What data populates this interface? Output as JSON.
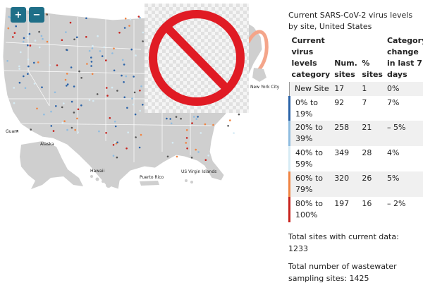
{
  "controls": {
    "zoom_in": "+",
    "zoom_out": "−"
  },
  "colors": {
    "new_site": "#ffffff",
    "0_19": "#2b63a8",
    "20_39": "#8fbce0",
    "40_59": "#d7ecf5",
    "60_79": "#f08442",
    "80_100": "#c8231e",
    "land": "#cfcfcf",
    "no_sign_red": "#e01b24"
  },
  "map_labels": {
    "guam": "Guam",
    "alaska": "Alaska",
    "hawaii": "Hawaii",
    "puerto_rico": "Puerto Rico",
    "virgin_islands": "US Virgin Islands",
    "new_york_city": "New York City"
  },
  "legend": {
    "title": "Current SARS-CoV-2 virus levels by site, United States",
    "headers": [
      "Current virus levels category",
      "Num. sites",
      "% sites",
      "Category change in last 7 days"
    ],
    "rows": [
      {
        "category": "New Site",
        "num": "17",
        "pct": "1",
        "change": "0%",
        "color": "#ffffff"
      },
      {
        "category": "0% to 19%",
        "num": "92",
        "pct": "7",
        "change": "7%",
        "color": "#2b63a8"
      },
      {
        "category": "20% to 39%",
        "num": "258",
        "pct": "21",
        "change": "– 5%",
        "color": "#8fbce0"
      },
      {
        "category": "40% to 59%",
        "num": "349",
        "pct": "28",
        "change": "4%",
        "color": "#d7ecf5"
      },
      {
        "category": "60% to 79%",
        "num": "320",
        "pct": "26",
        "change": "5%",
        "color": "#f08442"
      },
      {
        "category": "80% to 100%",
        "num": "197",
        "pct": "16",
        "change": "– 2%",
        "color": "#c8231e"
      }
    ]
  },
  "totals": {
    "current": "Total sites with current data: 1233",
    "sampling": "Total number of wastewater sampling sites: 1425"
  }
}
